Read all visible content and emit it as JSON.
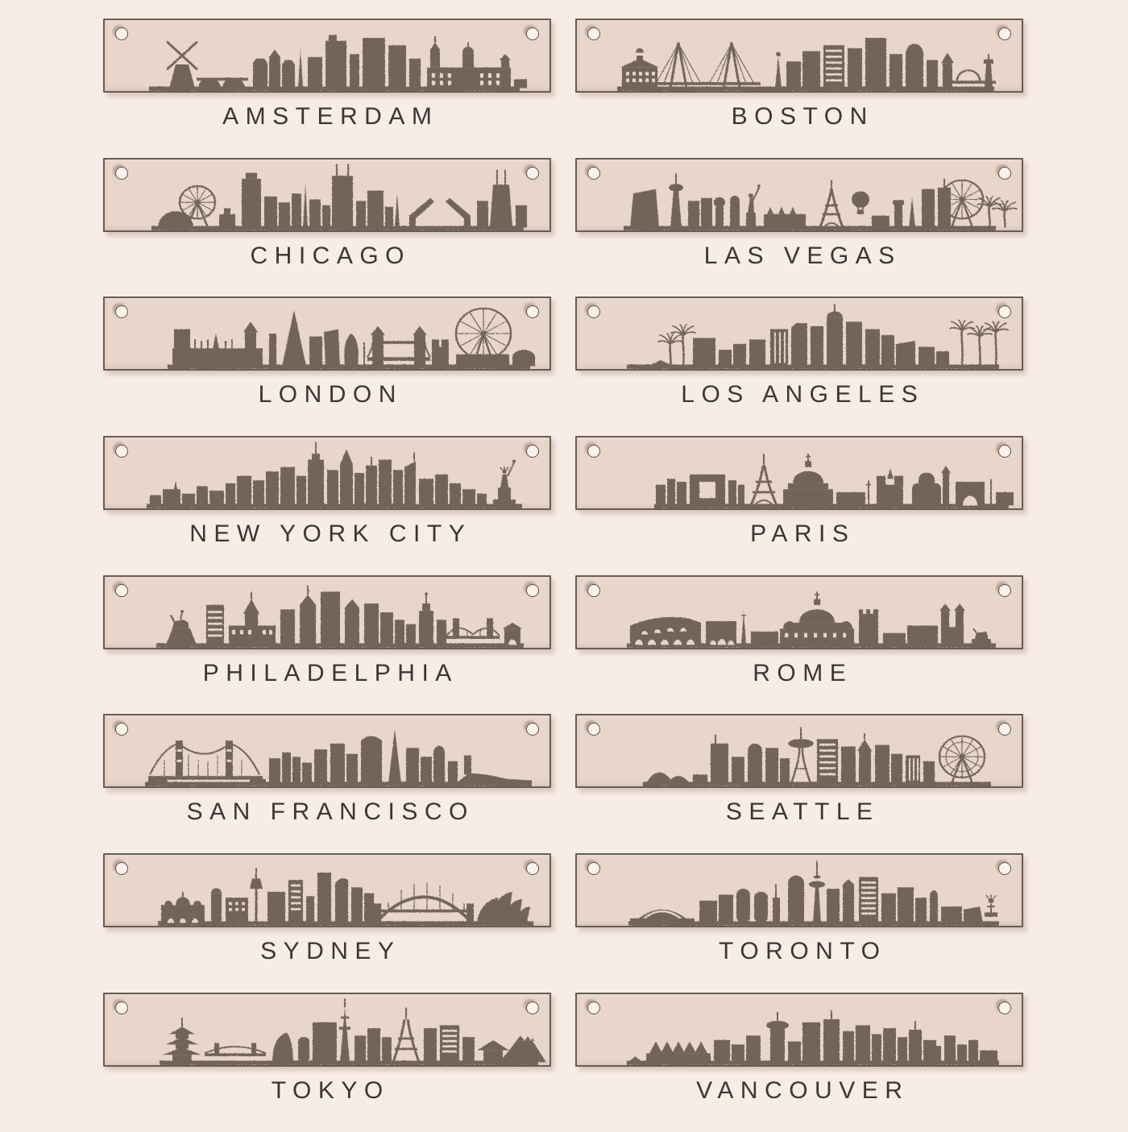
{
  "colors": {
    "background": "#f8ece6",
    "plaque_fill": "#e9d6cb",
    "plaque_border": "#675d53",
    "silhouette": "#6e6156",
    "label_text": "#3a3734",
    "hole_fill": "#fbf2ec"
  },
  "cities": [
    {
      "id": "amsterdam",
      "label": "AMSTERDAM",
      "icon": "amsterdam-skyline-icon"
    },
    {
      "id": "boston",
      "label": "BOSTON",
      "icon": "boston-skyline-icon"
    },
    {
      "id": "chicago",
      "label": "CHICAGO",
      "icon": "chicago-skyline-icon"
    },
    {
      "id": "las-vegas",
      "label": "LAS VEGAS",
      "icon": "las-vegas-skyline-icon"
    },
    {
      "id": "london",
      "label": "LONDON",
      "icon": "london-skyline-icon"
    },
    {
      "id": "los-angeles",
      "label": "LOS ANGELES",
      "icon": "los-angeles-skyline-icon"
    },
    {
      "id": "new-york-city",
      "label": "NEW YORK CITY",
      "icon": "new-york-city-skyline-icon"
    },
    {
      "id": "paris",
      "label": "PARIS",
      "icon": "paris-skyline-icon"
    },
    {
      "id": "philadelphia",
      "label": "PHILADELPHIA",
      "icon": "philadelphia-skyline-icon"
    },
    {
      "id": "rome",
      "label": "ROME",
      "icon": "rome-skyline-icon"
    },
    {
      "id": "san-francisco",
      "label": "SAN FRANCISCO",
      "icon": "san-francisco-skyline-icon"
    },
    {
      "id": "seattle",
      "label": "SEATTLE",
      "icon": "seattle-skyline-icon"
    },
    {
      "id": "sydney",
      "label": "SYDNEY",
      "icon": "sydney-skyline-icon"
    },
    {
      "id": "toronto",
      "label": "TORONTO",
      "icon": "toronto-skyline-icon"
    },
    {
      "id": "tokyo",
      "label": "TOKYO",
      "icon": "tokyo-skyline-icon"
    },
    {
      "id": "vancouver",
      "label": "VANCOUVER",
      "icon": "vancouver-skyline-icon"
    }
  ]
}
